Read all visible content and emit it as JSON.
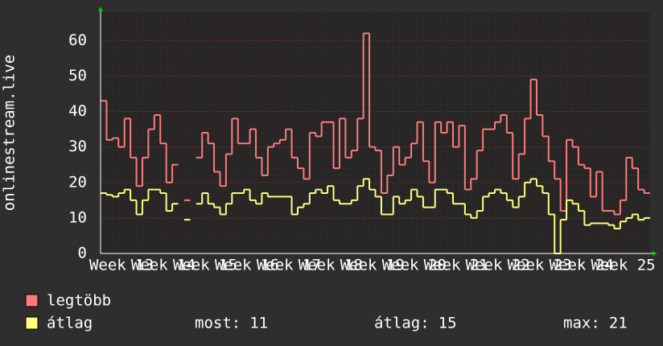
{
  "chart_data": {
    "type": "line",
    "y_label": "onlinestream.live",
    "categories": [
      null,
      null,
      null,
      "Week 13",
      null,
      null,
      null,
      null,
      null,
      null,
      "Week 14",
      null,
      null,
      null,
      null,
      null,
      null,
      "Week 15",
      null,
      null,
      null,
      null,
      null,
      null,
      "Week 16",
      null,
      null,
      null,
      null,
      null,
      null,
      "Week 17",
      null,
      null,
      null,
      null,
      null,
      null,
      "Week 18",
      null,
      null,
      null,
      null,
      null,
      null,
      "Week 19",
      null,
      null,
      null,
      null,
      null,
      null,
      "Week 20",
      null,
      null,
      null,
      null,
      null,
      null,
      "Week 21",
      null,
      null,
      null,
      null,
      null,
      null,
      "Week 22",
      null,
      null,
      null,
      null,
      null,
      null,
      "Week 23",
      null,
      null,
      null,
      null,
      null,
      null,
      "Week 24",
      null,
      null,
      null,
      null,
      null,
      null,
      "Week 25",
      null,
      null,
      null,
      null
    ],
    "series": [
      {
        "name": "legtöbb",
        "color": "#ff7b7b",
        "values": [
          43,
          32,
          32.5,
          30,
          38,
          27,
          19,
          27,
          35,
          39,
          31,
          20,
          25,
          null,
          15,
          null,
          27,
          34,
          31,
          23,
          19,
          28,
          38,
          31,
          31,
          35,
          27,
          22,
          30,
          31,
          32,
          35,
          27,
          24,
          21,
          34,
          33,
          37,
          37,
          24,
          38,
          27,
          29,
          38,
          62,
          30,
          29,
          17,
          22,
          30,
          25,
          27,
          31,
          37,
          26,
          20,
          37,
          34,
          37,
          30,
          36,
          18,
          21,
          29,
          35,
          35,
          37,
          39,
          34,
          21,
          28,
          38,
          49,
          39,
          33,
          26,
          21,
          12,
          32,
          30,
          25,
          24,
          16,
          23,
          12,
          12,
          11,
          15,
          27,
          24,
          18,
          17
        ]
      },
      {
        "name": "átlag",
        "color": "#ffff7b",
        "values": [
          17,
          16.5,
          16,
          17,
          18,
          15,
          11,
          15,
          18,
          18,
          17,
          12,
          14,
          null,
          9.5,
          null,
          14,
          17,
          14,
          13,
          11,
          14,
          17,
          17,
          18,
          15,
          14,
          17,
          16,
          16,
          16,
          16,
          11,
          13,
          14,
          17,
          18,
          17,
          19,
          15,
          14,
          14,
          15,
          19,
          21,
          18,
          16,
          11,
          11,
          16,
          14,
          15,
          18,
          16,
          13,
          13,
          18,
          18,
          17,
          14,
          14,
          11,
          10,
          12,
          16,
          17,
          18,
          17,
          15,
          13,
          16,
          20,
          21,
          19,
          17,
          11,
          0,
          9.5,
          15,
          14,
          12,
          8,
          8.5,
          8.5,
          8.5,
          8,
          7,
          9,
          10,
          11,
          9.5,
          10
        ]
      }
    ],
    "ylim": [
      0,
      68
    ],
    "yticks": [
      0,
      10,
      20,
      30,
      40,
      50,
      60
    ],
    "grid": true,
    "stats": [
      {
        "label": "most:",
        "value": 11
      },
      {
        "label": "átlag:",
        "value": 15
      },
      {
        "label": "max:",
        "value": 21
      }
    ]
  }
}
